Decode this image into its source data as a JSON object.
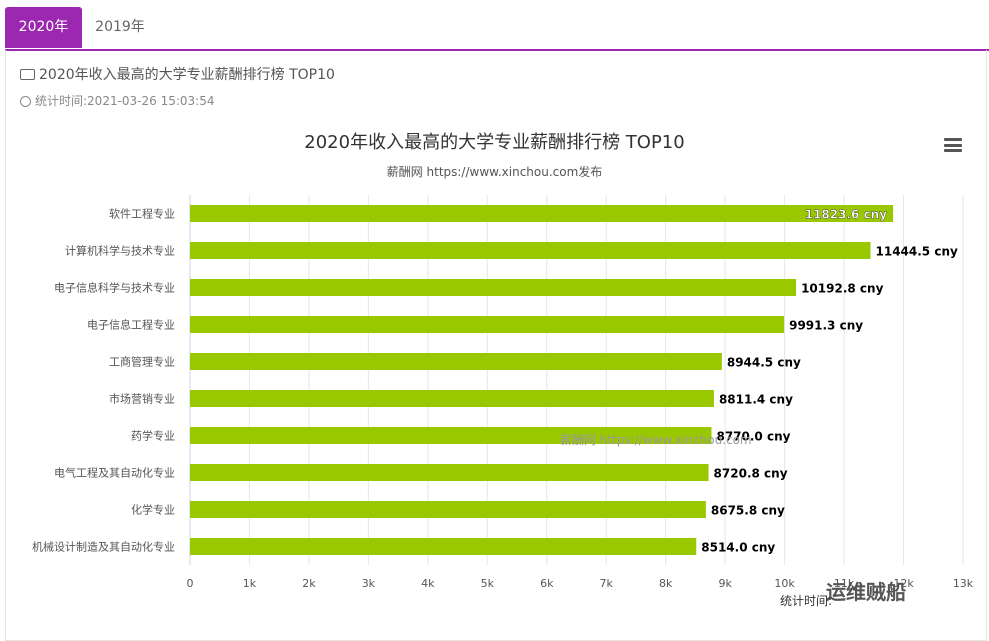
{
  "tabs": [
    {
      "label": "2020年",
      "active": true
    },
    {
      "label": "2019年",
      "active": false
    }
  ],
  "panel": {
    "title": "2020年收入最高的大学专业薪酬排行榜 TOP10",
    "timestamp": "统计时间:2021-03-26 15:03:54"
  },
  "colors": {
    "accent": "#9c27b0",
    "bar": "#9ac800"
  },
  "watermark": "薪酬网 https://www.xinchou.com",
  "footer_credit": "统计时间:",
  "logo_text": "运维贼船",
  "chart_data": {
    "type": "bar",
    "orientation": "horizontal",
    "title": "2020年收入最高的大学专业薪酬排行榜 TOP10",
    "subtitle": "薪酬网 https://www.xinchou.com发布",
    "categories": [
      "软件工程专业",
      "计算机科学与技术专业",
      "电子信息科学与技术专业",
      "电子信息工程专业",
      "工商管理专业",
      "市场营销专业",
      "药学专业",
      "电气工程及其自动化专业",
      "化学专业",
      "机械设计制造及其自动化专业"
    ],
    "values": [
      11823.6,
      11444.5,
      10192.8,
      9991.3,
      8944.5,
      8811.4,
      8770.0,
      8720.8,
      8675.8,
      8514.0
    ],
    "value_labels": [
      "11823.6 cny",
      "11444.5 cny",
      "10192.8 cny",
      "9991.3 cny",
      "8944.5 cny",
      "8811.4 cny",
      "8770.0 cny",
      "8720.8 cny",
      "8675.8 cny",
      "8514.0 cny"
    ],
    "xlim": [
      0,
      13000
    ],
    "x_ticks": [
      "0",
      "1k",
      "2k",
      "3k",
      "4k",
      "5k",
      "6k",
      "7k",
      "8k",
      "9k",
      "10k",
      "11k",
      "12k",
      "13k"
    ],
    "grid": true,
    "legend": "none"
  }
}
